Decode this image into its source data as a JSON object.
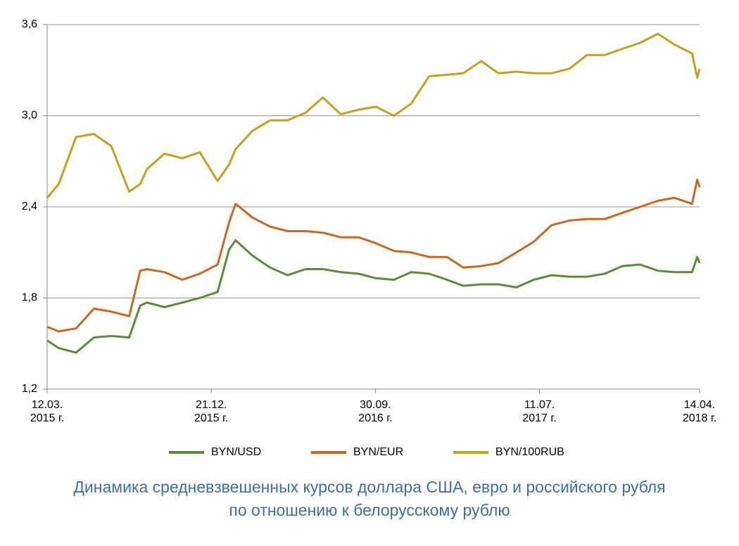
{
  "chart_data": {
    "type": "line",
    "title": [
      "Динамика средневзвешенных курсов доллара США, евро и российского рубля",
      "по отношению к белорусскому рублю"
    ],
    "x": [
      "2015-03-12",
      "2015-04-01",
      "2015-05-01",
      "2015-06-01",
      "2015-07-01",
      "2015-08-01",
      "2015-08-20",
      "2015-09-01",
      "2015-10-01",
      "2015-11-01",
      "2015-12-01",
      "2016-01-01",
      "2016-01-21",
      "2016-02-01",
      "2016-03-01",
      "2016-04-01",
      "2016-05-01",
      "2016-06-01",
      "2016-07-01",
      "2016-08-01",
      "2016-09-01",
      "2016-10-01",
      "2016-11-01",
      "2016-12-01",
      "2017-01-01",
      "2017-02-01",
      "2017-03-01",
      "2017-04-01",
      "2017-05-01",
      "2017-06-01",
      "2017-07-01",
      "2017-08-01",
      "2017-09-01",
      "2017-10-01",
      "2017-11-01",
      "2017-12-01",
      "2018-01-01",
      "2018-02-01",
      "2018-03-01",
      "2018-04-01",
      "2018-04-10",
      "2018-04-14"
    ],
    "series": [
      {
        "name": "BYN/USD",
        "color": "#5b8c36",
        "values": [
          1.52,
          1.47,
          1.44,
          1.54,
          1.55,
          1.54,
          1.75,
          1.77,
          1.74,
          1.77,
          1.8,
          1.84,
          2.12,
          2.18,
          2.08,
          2.0,
          1.95,
          1.99,
          1.99,
          1.97,
          1.96,
          1.93,
          1.92,
          1.97,
          1.96,
          1.92,
          1.88,
          1.89,
          1.89,
          1.87,
          1.92,
          1.95,
          1.94,
          1.94,
          1.96,
          2.01,
          2.02,
          1.98,
          1.97,
          1.97,
          2.07,
          2.03
        ]
      },
      {
        "name": "BYN/EUR",
        "color": "#d0661c",
        "values": [
          1.61,
          1.58,
          1.6,
          1.73,
          1.71,
          1.68,
          1.98,
          1.99,
          1.97,
          1.92,
          1.96,
          2.02,
          2.3,
          2.42,
          2.33,
          2.27,
          2.24,
          2.24,
          2.23,
          2.2,
          2.2,
          2.16,
          2.11,
          2.1,
          2.07,
          2.07,
          2.0,
          2.01,
          2.03,
          2.1,
          2.17,
          2.28,
          2.31,
          2.32,
          2.32,
          2.36,
          2.4,
          2.44,
          2.46,
          2.42,
          2.58,
          2.53
        ]
      },
      {
        "name": "BYN/100RUB",
        "color": "#c9a019",
        "values": [
          2.46,
          2.55,
          2.86,
          2.88,
          2.8,
          2.5,
          2.55,
          2.65,
          2.75,
          2.72,
          2.76,
          2.57,
          2.68,
          2.78,
          2.9,
          2.97,
          2.97,
          3.02,
          3.12,
          3.01,
          3.04,
          3.06,
          3.0,
          3.08,
          3.26,
          3.27,
          3.28,
          3.36,
          3.28,
          3.29,
          3.28,
          3.28,
          3.31,
          3.4,
          3.4,
          3.44,
          3.48,
          3.54,
          3.47,
          3.41,
          3.25,
          3.31
        ]
      }
    ],
    "xlim": [
      "2015-03-12",
      "2018-04-14"
    ],
    "xticks": [
      {
        "value": "2015-03-12",
        "label": [
          "12.03.",
          "2015 г."
        ]
      },
      {
        "value": "2015-12-21",
        "label": [
          "21.12.",
          "2015 г."
        ]
      },
      {
        "value": "2016-09-30",
        "label": [
          "30.09.",
          "2016 г."
        ]
      },
      {
        "value": "2017-07-11",
        "label": [
          "11.07.",
          "2017 г."
        ]
      },
      {
        "value": "2018-04-14",
        "label": [
          "14.04.",
          "2018 г."
        ]
      }
    ],
    "ylim": [
      1.2,
      3.6
    ],
    "yticks": [
      {
        "value": 1.2,
        "label": "1,2"
      },
      {
        "value": 1.8,
        "label": "1,8"
      },
      {
        "value": 2.4,
        "label": "2,4"
      },
      {
        "value": 3.0,
        "label": "3,0"
      },
      {
        "value": 3.6,
        "label": "3,6"
      }
    ],
    "grid": true
  }
}
